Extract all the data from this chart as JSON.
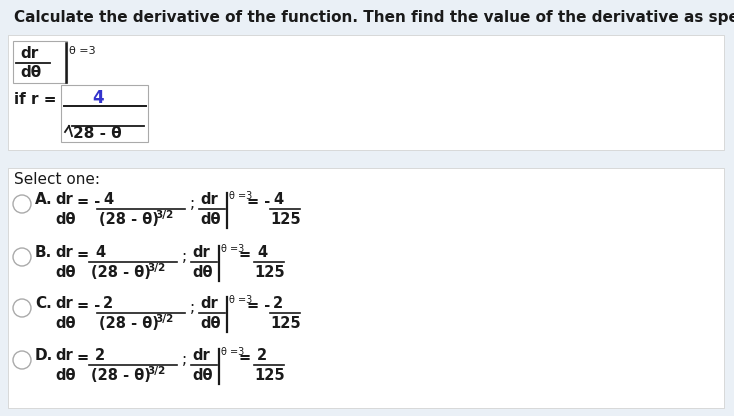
{
  "background_color": "#eaf0f6",
  "white": "#ffffff",
  "title": "Calculate the derivative of the function. Then find the value of the derivative as specified.",
  "font_color": "#1a1a1a",
  "dark_red": "#6b1a1a",
  "circle_color": "#aaaaaa",
  "options": [
    {
      "label": "A.",
      "sign": "-",
      "num": "4",
      "eval_sign": "- ",
      "eval_num": "4"
    },
    {
      "label": "B.",
      "sign": "",
      "num": "4",
      "eval_sign": "",
      "eval_num": "4"
    },
    {
      "label": "C.",
      "sign": "-",
      "num": "2",
      "eval_sign": "- ",
      "eval_num": "2"
    },
    {
      "label": "D.",
      "sign": "",
      "num": "2",
      "eval_sign": "",
      "eval_num": "2"
    }
  ]
}
